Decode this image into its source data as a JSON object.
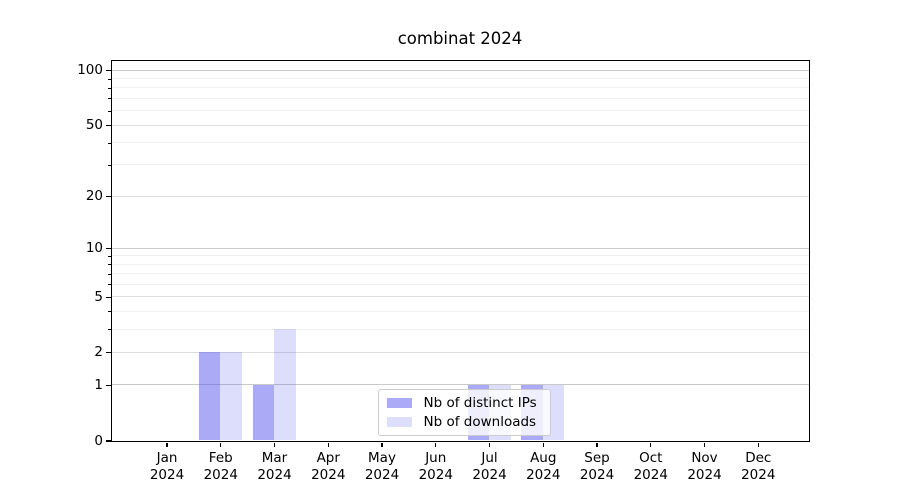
{
  "title": "combinat 2024",
  "chart_data": {
    "type": "bar",
    "title": "combinat 2024",
    "categories": [
      "Jan 2024",
      "Feb 2024",
      "Mar 2024",
      "Apr 2024",
      "May 2024",
      "Jun 2024",
      "Jul 2024",
      "Aug 2024",
      "Sep 2024",
      "Oct 2024",
      "Nov 2024",
      "Dec 2024"
    ],
    "series": [
      {
        "name": "Nb of distinct IPs",
        "color": "#5555ee",
        "alpha": 0.5,
        "rendered_color": "#a8a8f8",
        "values": [
          0,
          2,
          1,
          0,
          0,
          0,
          1,
          1,
          0,
          0,
          0,
          0
        ]
      },
      {
        "name": "Nb of downloads",
        "color": "#5555ee",
        "alpha": 0.2,
        "rendered_color": "#dcdcfa",
        "values": [
          0,
          2,
          3,
          0,
          0,
          0,
          1,
          1,
          0,
          0,
          0,
          0
        ]
      }
    ],
    "xlabel": "",
    "ylabel": "",
    "yscale": "log1p",
    "ylim": [
      0,
      113
    ],
    "y_major_ticks": [
      0,
      1,
      2,
      5,
      10,
      20,
      50,
      100
    ],
    "y_minor_ticks": [
      3,
      4,
      6,
      7,
      8,
      9,
      30,
      40,
      60,
      70,
      80,
      90
    ],
    "grid": "horizontal",
    "legend_position": "lower-center"
  },
  "colors": {
    "background": "#ffffff",
    "spine": "#000000",
    "text": "#000000",
    "grid_decade": "#c9c9c9",
    "grid_labeled": "#dddddd",
    "grid_minor": "#efefef",
    "legend_border": "#cccccc"
  }
}
